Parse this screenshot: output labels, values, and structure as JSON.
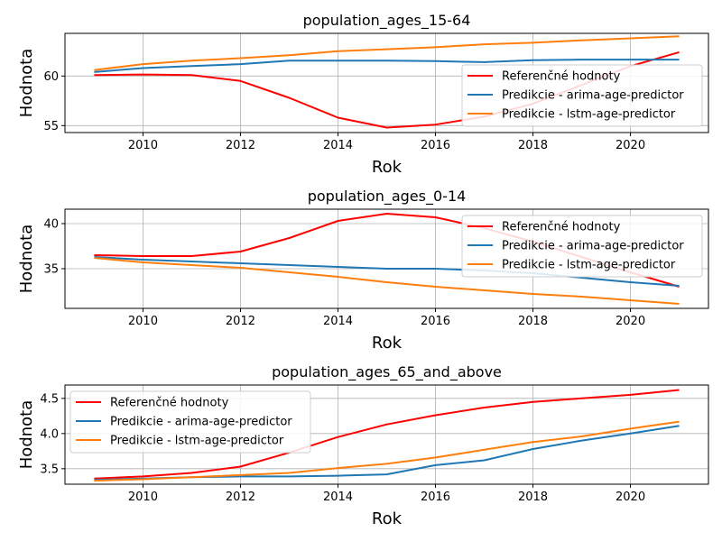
{
  "chart_data": [
    {
      "type": "line",
      "title": "population_ages_15-64",
      "xlabel": "Rok",
      "ylabel": "Hodnota",
      "x": [
        2009,
        2010,
        2011,
        2012,
        2013,
        2014,
        2015,
        2016,
        2017,
        2018,
        2019,
        2020,
        2021
      ],
      "xlim": [
        2008.4,
        2021.6
      ],
      "ylim": [
        54.3,
        64.3
      ],
      "xticks": [
        2010,
        2012,
        2014,
        2016,
        2018,
        2020
      ],
      "yticks": [
        55,
        60
      ],
      "grid": true,
      "legend_position": "right",
      "series": [
        {
          "name": "Referenčné hodnoty",
          "color": "#ff0000",
          "values": [
            60.1,
            60.15,
            60.1,
            59.5,
            57.8,
            55.8,
            54.8,
            55.1,
            55.9,
            57.2,
            59.1,
            61.0,
            62.4
          ]
        },
        {
          "name": "Predikcie - arima-age-predictor",
          "color": "#1f77b4",
          "values": [
            60.4,
            60.8,
            61.0,
            61.2,
            61.55,
            61.55,
            61.55,
            61.5,
            61.4,
            61.6,
            61.65,
            61.65,
            61.65
          ]
        },
        {
          "name": "Predikcie - lstm-age-predictor",
          "color": "#ff7f0e",
          "values": [
            60.6,
            61.2,
            61.55,
            61.8,
            62.1,
            62.5,
            62.7,
            62.9,
            63.2,
            63.35,
            63.6,
            63.8,
            64.0
          ]
        }
      ]
    },
    {
      "type": "line",
      "title": "population_ages_0-14",
      "xlabel": "Rok",
      "ylabel": "Hodnota",
      "x": [
        2009,
        2010,
        2011,
        2012,
        2013,
        2014,
        2015,
        2016,
        2017,
        2018,
        2019,
        2020,
        2021
      ],
      "xlim": [
        2008.4,
        2021.6
      ],
      "ylim": [
        30.6,
        41.6
      ],
      "xticks": [
        2010,
        2012,
        2014,
        2016,
        2018,
        2020
      ],
      "yticks": [
        35,
        40
      ],
      "grid": true,
      "legend_position": "right",
      "series": [
        {
          "name": "Referenčné hodnoty",
          "color": "#ff0000",
          "values": [
            36.5,
            36.4,
            36.4,
            36.9,
            38.4,
            40.3,
            41.1,
            40.7,
            39.5,
            38.0,
            36.3,
            34.6,
            33.0
          ]
        },
        {
          "name": "Predikcie - arima-age-predictor",
          "color": "#1f77b4",
          "values": [
            36.3,
            36.0,
            35.8,
            35.6,
            35.4,
            35.2,
            35.0,
            35.0,
            34.8,
            34.5,
            34.0,
            33.5,
            33.1
          ]
        },
        {
          "name": "Predikcie - lstm-age-predictor",
          "color": "#ff7f0e",
          "values": [
            36.2,
            35.7,
            35.4,
            35.1,
            34.6,
            34.1,
            33.5,
            33.0,
            32.6,
            32.2,
            31.9,
            31.5,
            31.1
          ]
        }
      ]
    },
    {
      "type": "line",
      "title": "population_ages_65_and_above",
      "xlabel": "Rok",
      "ylabel": "Hodnota",
      "x": [
        2009,
        2010,
        2011,
        2012,
        2013,
        2014,
        2015,
        2016,
        2017,
        2018,
        2019,
        2020,
        2021
      ],
      "xlim": [
        2008.4,
        2021.6
      ],
      "ylim": [
        3.28,
        4.69
      ],
      "xticks": [
        2010,
        2012,
        2014,
        2016,
        2018,
        2020
      ],
      "yticks": [
        3.5,
        4.0,
        4.5
      ],
      "ytick_labels": [
        "3.5",
        "4.0",
        "4.5"
      ],
      "grid": true,
      "legend_position": "upper left",
      "series": [
        {
          "name": "Referenčné hodnoty",
          "color": "#ff0000",
          "values": [
            3.36,
            3.39,
            3.44,
            3.53,
            3.73,
            3.95,
            4.13,
            4.26,
            4.37,
            4.45,
            4.5,
            4.55,
            4.62
          ]
        },
        {
          "name": "Predikcie - arima-age-predictor",
          "color": "#1f77b4",
          "values": [
            3.34,
            3.36,
            3.38,
            3.39,
            3.39,
            3.4,
            3.42,
            3.55,
            3.62,
            3.78,
            3.9,
            4.0,
            4.11
          ]
        },
        {
          "name": "Predikcie - lstm-age-predictor",
          "color": "#ff7f0e",
          "values": [
            3.33,
            3.35,
            3.38,
            3.41,
            3.44,
            3.51,
            3.57,
            3.66,
            3.77,
            3.88,
            3.96,
            4.07,
            4.17
          ]
        }
      ]
    }
  ]
}
